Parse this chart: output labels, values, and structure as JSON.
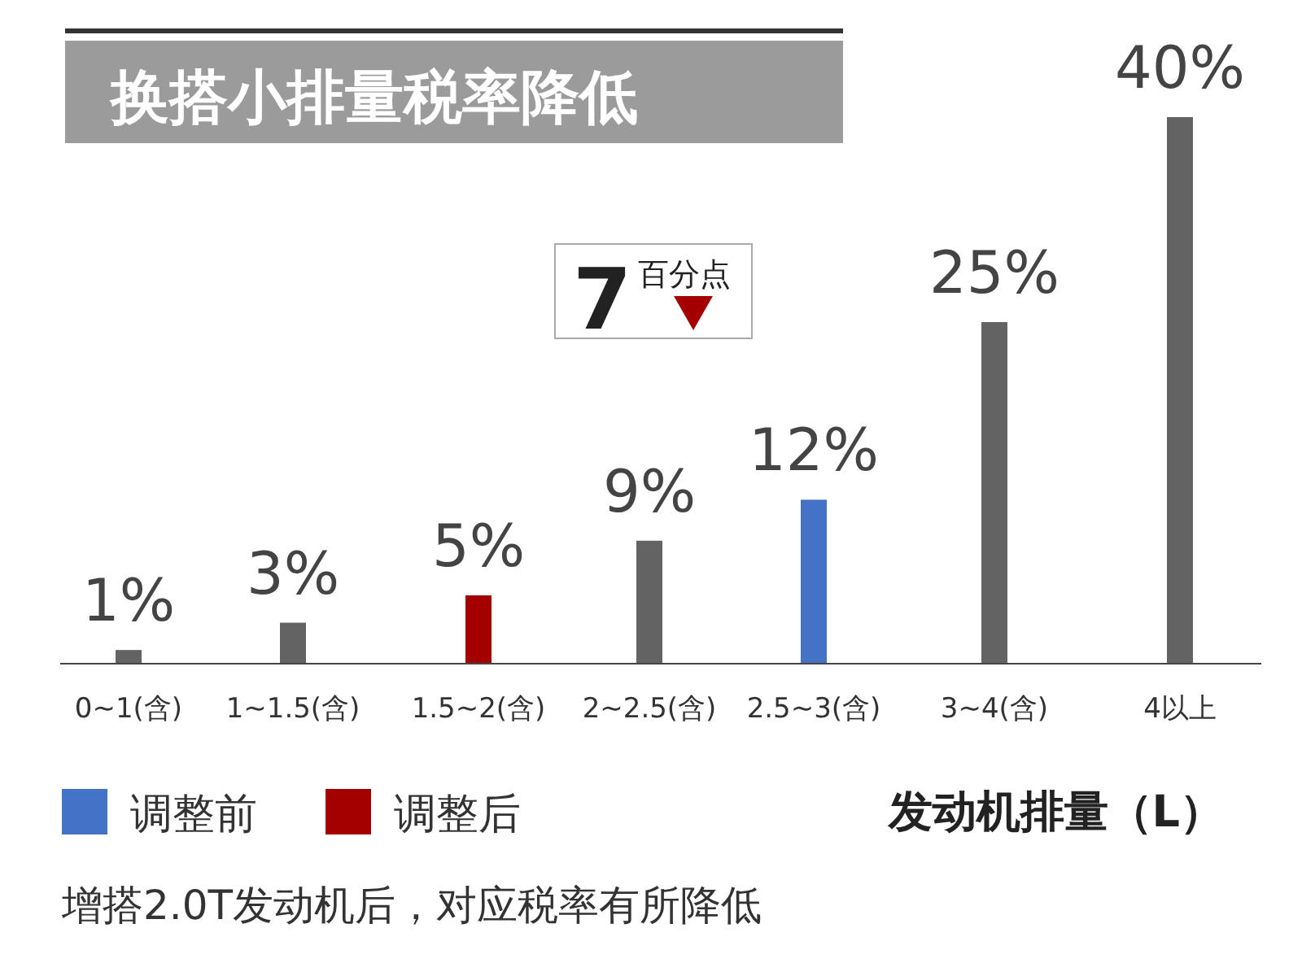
{
  "chart_data": {
    "type": "bar",
    "title": "换搭小排量税率降低",
    "xlabel": "发动机排量（L）",
    "categories": [
      "0~1(含)",
      "1~1.5(含)",
      "1.5~2(含)",
      "2~2.5(含)",
      "2.5~3(含)",
      "3~4(含)",
      "4以上"
    ],
    "series": [
      {
        "color": "#636363",
        "values": [
          1,
          3,
          null,
          9,
          null,
          25,
          40
        ],
        "value_labels": [
          "1%",
          "3%",
          null,
          "9%",
          null,
          "25%",
          "40%"
        ]
      },
      {
        "name": "调整前",
        "color": "#4472c4",
        "values": [
          null,
          null,
          null,
          null,
          12,
          null,
          null
        ],
        "value_labels": [
          null,
          null,
          null,
          null,
          "12%",
          null,
          null
        ]
      },
      {
        "name": "调整后",
        "color": "#a50000",
        "values": [
          null,
          null,
          5,
          null,
          null,
          null,
          null
        ],
        "value_labels": [
          null,
          null,
          "5%",
          null,
          null,
          null,
          null
        ]
      }
    ],
    "legend": "bottom left",
    "grid": false,
    "annotations": [
      "7百分点",
      "增搭2.0T发动机后，对应税率有所降低"
    ]
  }
}
